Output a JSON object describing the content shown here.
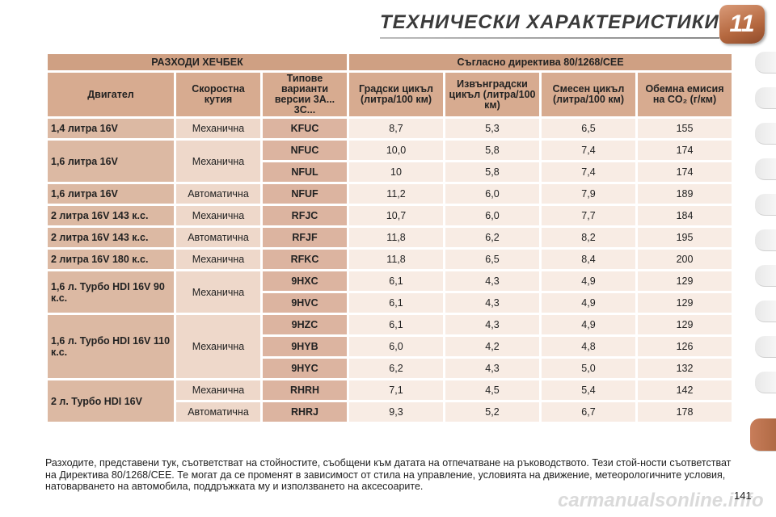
{
  "header": {
    "title": "ТЕХНИЧЕСКИ ХАРАКТЕРИСТИКИ",
    "chapter": "11"
  },
  "table": {
    "group_left": "РАЗХОДИ ХЕЧБЕК",
    "group_right": "Съгласно директива 80/1268/CEE",
    "columns": {
      "engine": "Двигател",
      "gearbox": "Скоростна кутия",
      "variant": "Типове варианти версии 3A... 3C...",
      "urban": "Градски цикъл (литра/100 км)",
      "extra_urban": "Извънградски цикъл (литра/100 км)",
      "combined": "Смесен цикъл (литра/100 км)",
      "co2": "Обемна емисия на CO₂ (г/км)"
    },
    "engines": [
      {
        "engine": "1,4 литра 16V",
        "rows": [
          {
            "gearbox": "Механична",
            "variant": "KFUC",
            "urban": "8,7",
            "extra": "5,3",
            "combined": "6,5",
            "co2": "155"
          }
        ]
      },
      {
        "engine": "1,6 литра 16V",
        "rows": [
          {
            "gearbox": "Механична",
            "variant": "NFUC",
            "urban": "10,0",
            "extra": "5,8",
            "combined": "7,4",
            "co2": "174"
          },
          {
            "gearbox": "",
            "variant": "NFUL",
            "urban": "10",
            "extra": "5,8",
            "combined": "7,4",
            "co2": "174"
          }
        ]
      },
      {
        "engine": "1,6 литра 16V",
        "rows": [
          {
            "gearbox": "Автоматична",
            "variant": "NFUF",
            "urban": "11,2",
            "extra": "6,0",
            "combined": "7,9",
            "co2": "189"
          }
        ]
      },
      {
        "engine": "2 литра 16V 143 к.с.",
        "rows": [
          {
            "gearbox": "Механична",
            "variant": "RFJC",
            "urban": "10,7",
            "extra": "6,0",
            "combined": "7,7",
            "co2": "184"
          }
        ]
      },
      {
        "engine": "2 литра 16V 143 к.с.",
        "rows": [
          {
            "gearbox": "Автоматична",
            "variant": "RFJF",
            "urban": "11,8",
            "extra": "6,2",
            "combined": "8,2",
            "co2": "195"
          }
        ]
      },
      {
        "engine": "2 литра 16V 180 к.с.",
        "rows": [
          {
            "gearbox": "Механична",
            "variant": "RFKC",
            "urban": "11,8",
            "extra": "6,5",
            "combined": "8,4",
            "co2": "200"
          }
        ]
      },
      {
        "engine": "1,6 л. Турбо HDI 16V 90 к.с.",
        "rows": [
          {
            "gearbox": "Механична",
            "variant": "9HXC",
            "urban": "6,1",
            "extra": "4,3",
            "combined": "4,9",
            "co2": "129"
          },
          {
            "gearbox": "",
            "variant": "9HVC",
            "urban": "6,1",
            "extra": "4,3",
            "combined": "4,9",
            "co2": "129"
          }
        ]
      },
      {
        "engine": "1,6 л. Турбо HDI 16V 110 к.с.",
        "rows": [
          {
            "gearbox": "Механична",
            "variant": "9HZC",
            "urban": "6,1",
            "extra": "4,3",
            "combined": "4,9",
            "co2": "129"
          },
          {
            "gearbox": "",
            "variant": "9HYB",
            "urban": "6,0",
            "extra": "4,2",
            "combined": "4,8",
            "co2": "126"
          },
          {
            "gearbox": "",
            "variant": "9HYC",
            "urban": "6,2",
            "extra": "4,3",
            "combined": "5,0",
            "co2": "132"
          }
        ]
      },
      {
        "engine": "2 л. Турбо HDI 16V",
        "rows": [
          {
            "gearbox": "Механична",
            "variant": "RHRH",
            "urban": "7,1",
            "extra": "4,5",
            "combined": "5,4",
            "co2": "142"
          },
          {
            "gearbox": "Автоматична",
            "variant": "RHRJ",
            "urban": "9,3",
            "extra": "5,2",
            "combined": "6,7",
            "co2": "178"
          }
        ]
      }
    ]
  },
  "footnote": "Разходите, представени тук, съответстват на стойностите, съобщени към датата на отпечатване на ръководството. Тези стой-ности съответстват на Директива 80/1268/CEE. Те могат да се променят в зависимост от стила на управление, условията на движение, метеорологичните условия, натоварването на автомобила, поддръжката му и използването на аксесоарите.",
  "page_number": "141",
  "watermark": "carmanualsonline.info"
}
